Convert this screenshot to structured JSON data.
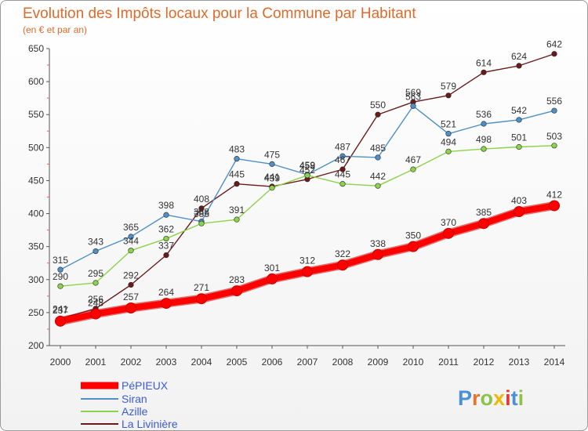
{
  "chart_data": {
    "type": "line",
    "title": "Evolution des Impôts locaux pour la Commune par Habitant",
    "subtitle": "(en € et par an)",
    "xlabel": "",
    "ylabel": "",
    "x": [
      "2000",
      "2001",
      "2002",
      "2003",
      "2004",
      "2005",
      "2006",
      "2007",
      "2008",
      "2009",
      "2010",
      "2011",
      "2012",
      "2013",
      "2014"
    ],
    "ylim": [
      200,
      650
    ],
    "yticks": [
      200,
      250,
      300,
      350,
      400,
      450,
      500,
      550,
      600,
      650
    ],
    "series": [
      {
        "name": "La Livinière",
        "color": "#6b1a1a",
        "values": [
          241,
          256,
          292,
          337,
          408,
          445,
          441,
          452,
          467,
          550,
          569,
          579,
          614,
          624,
          642
        ]
      },
      {
        "name": "Siran",
        "color": "#4f8fc6",
        "values": [
          315,
          343,
          365,
          398,
          388,
          483,
          475,
          459,
          487,
          485,
          563,
          521,
          536,
          542,
          556
        ]
      },
      {
        "name": "Azille",
        "color": "#8bd34a",
        "values": [
          290,
          295,
          344,
          362,
          385,
          391,
          439,
          458,
          445,
          442,
          467,
          494,
          498,
          501,
          503
        ]
      },
      {
        "name": "PéPIEUX",
        "color": "#ff0000",
        "values": [
          237,
          248,
          257,
          264,
          271,
          283,
          301,
          312,
          322,
          338,
          350,
          370,
          385,
          403,
          412
        ]
      }
    ],
    "legend": [
      "PéPIEUX",
      "Siran",
      "Azille",
      "La Livinière"
    ],
    "grid": false
  },
  "brand": {
    "letters": [
      "P",
      "r",
      "o",
      "x",
      "i",
      "t",
      "i"
    ],
    "colors": [
      "#4a90d9",
      "#e8742a",
      "#8bc34a",
      "#f2b705",
      "#e53935",
      "#4a90d9",
      "#8bc34a"
    ]
  }
}
